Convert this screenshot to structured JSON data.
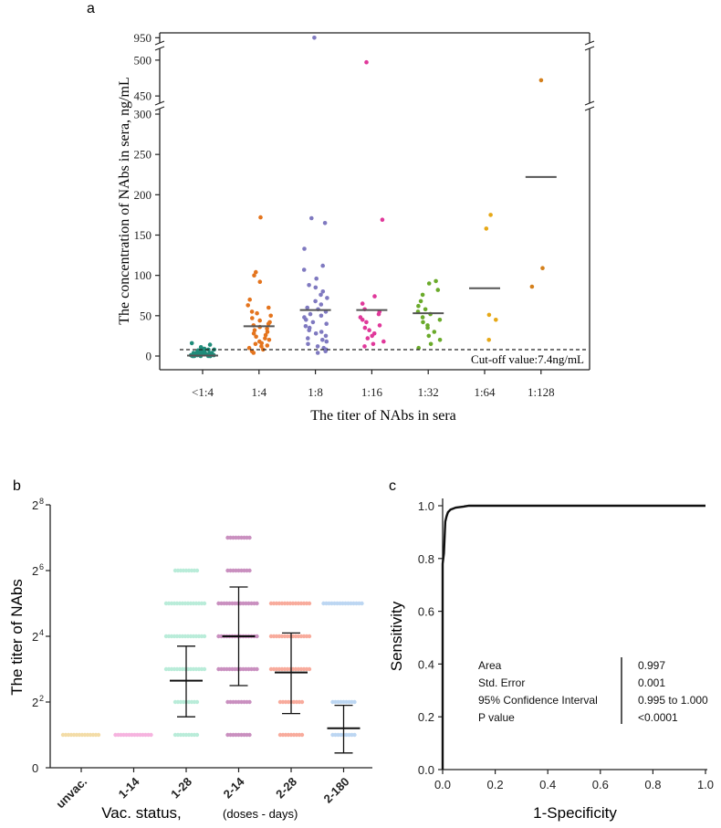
{
  "chart_data": [
    {
      "panel": "a",
      "type": "scatter",
      "xlabel": "The titer of NAbs in sera",
      "ylabel": "The concentration of NAbs in sera, ng/mL",
      "categories": [
        "<1:4",
        "1:4",
        "1:8",
        "1:16",
        "1:32",
        "1:64",
        "1:128"
      ],
      "colors": [
        "#1f8c7a",
        "#e4741d",
        "#7f79c0",
        "#e0389a",
        "#6aaa2a",
        "#e6a817",
        "#d4801c"
      ],
      "axis_segments": [
        {
          "ylim": [
            0,
            300
          ],
          "ticks": [
            0,
            50,
            100,
            150,
            200,
            250,
            300
          ]
        },
        {
          "ylim": [
            440,
            510
          ],
          "ticks": [
            450,
            500
          ]
        },
        {
          "ylim": [
            940,
            955
          ],
          "ticks": [
            950
          ]
        }
      ],
      "cutoff": {
        "value": 7.4,
        "label": "Cut-off value:7.4ng/mL"
      },
      "medians": [
        0.5,
        37,
        57,
        57,
        53,
        84,
        222
      ],
      "series": [
        {
          "name": "<1:4",
          "values": [
            0,
            0,
            0,
            0,
            0,
            0,
            0,
            1,
            1,
            1,
            1,
            2,
            2,
            2,
            2,
            3,
            3,
            3,
            3,
            4,
            4,
            4,
            4,
            5,
            5,
            5,
            6,
            6,
            7,
            7,
            8,
            8,
            9,
            10,
            11,
            14,
            16
          ]
        },
        {
          "name": "1:4",
          "values": [
            172,
            104,
            100,
            92,
            70,
            63,
            60,
            55,
            53,
            50,
            47,
            44,
            42,
            40,
            38,
            36,
            34,
            32,
            30,
            28,
            26,
            24,
            22,
            20,
            18,
            16,
            15,
            13,
            12,
            10,
            8,
            6,
            4
          ]
        },
        {
          "name": "1:8",
          "values": [
            950,
            171,
            165,
            133,
            112,
            107,
            96,
            88,
            85,
            80,
            76,
            72,
            68,
            64,
            60,
            58,
            55,
            52,
            50,
            48,
            45,
            42,
            40,
            37,
            35,
            32,
            30,
            28,
            25,
            22,
            20,
            18,
            15,
            12,
            10,
            8,
            6,
            4
          ]
        },
        {
          "name": "1:16",
          "values": [
            497,
            169,
            74,
            65,
            58,
            55,
            52,
            48,
            45,
            42,
            38,
            35,
            32,
            28,
            25,
            22,
            18,
            15,
            12
          ]
        },
        {
          "name": "1:32",
          "values": [
            93,
            90,
            82,
            76,
            68,
            62,
            58,
            55,
            52,
            48,
            45,
            42,
            38,
            35,
            30,
            25,
            20,
            15,
            10
          ]
        },
        {
          "name": "1:64",
          "values": [
            175,
            158,
            51,
            45,
            20
          ]
        },
        {
          "name": "1:128",
          "values": [
            472,
            109,
            86
          ]
        }
      ]
    },
    {
      "panel": "b",
      "type": "scatter",
      "xlabel": "Vac. status,",
      "xlabel_note": "(doses - days)",
      "ylabel": "The titer of NAbs",
      "y_tick_labels": [
        {
          "base": "0",
          "exp": ""
        },
        {
          "base": "2",
          "exp": "2"
        },
        {
          "base": "2",
          "exp": "4"
        },
        {
          "base": "2",
          "exp": "6"
        },
        {
          "base": "2",
          "exp": "8"
        }
      ],
      "ylim": [
        0,
        8
      ],
      "categories": [
        "unvac.",
        "1-14",
        "1-28",
        "2-14",
        "2-28",
        "2-180"
      ],
      "colors": [
        "#f3dca7",
        "#f6b3df",
        "#b9ecd9",
        "#c98fbf",
        "#f8ab9c",
        "#bcd6f2"
      ],
      "mean": [
        null,
        null,
        2.65,
        4.0,
        2.9,
        1.2
      ],
      "sd_upper": [
        null,
        null,
        3.7,
        5.5,
        4.1,
        1.9
      ],
      "sd_lower": [
        null,
        null,
        1.55,
        2.5,
        1.65,
        0.45
      ],
      "levels": [
        [
          1
        ],
        [
          1
        ],
        [
          1,
          2,
          3,
          4,
          5,
          6
        ],
        [
          1,
          2,
          3,
          4,
          5,
          6,
          7
        ],
        [
          1,
          2,
          3,
          4,
          5
        ],
        [
          1,
          2,
          5
        ]
      ]
    },
    {
      "panel": "c",
      "type": "line",
      "xlabel": "1-Specificity",
      "ylabel": "Sensitivity",
      "xlim": [
        0,
        1
      ],
      "ylim": [
        0,
        1
      ],
      "xticks": [
        "0.0",
        "0.2",
        "0.4",
        "0.6",
        "0.8",
        "1.0"
      ],
      "yticks": [
        "0.0",
        "0.2",
        "0.4",
        "0.6",
        "0.8",
        "1.0"
      ],
      "x": [
        0,
        0,
        0.005,
        0.01,
        0.015,
        0.02,
        0.03,
        0.05,
        0.08,
        0.1,
        1.0
      ],
      "y": [
        0,
        0.78,
        0.82,
        0.94,
        0.96,
        0.975,
        0.985,
        0.993,
        0.997,
        1.0,
        1.0
      ],
      "stats": [
        {
          "label": "Area",
          "value": "0.997"
        },
        {
          "label": "Std. Error",
          "value": "0.001"
        },
        {
          "label": "95% Confidence Interval",
          "value": "0.995 to 1.000"
        },
        {
          "label": "P value",
          "value": "<0.0001"
        }
      ]
    }
  ]
}
